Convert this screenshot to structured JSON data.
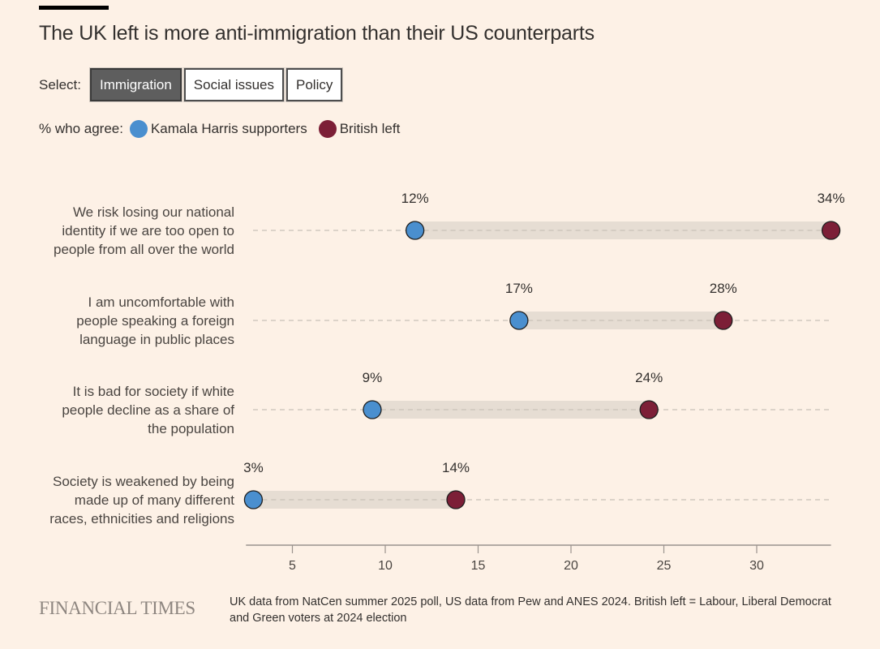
{
  "title": "The UK left is more anti-immigration than their US counterparts",
  "select": {
    "label": "Select:",
    "buttons": [
      {
        "label": "Immigration",
        "active": true
      },
      {
        "label": "Social issues",
        "active": false
      },
      {
        "label": "Policy",
        "active": false
      }
    ]
  },
  "legend": {
    "label": "% who agree:",
    "items": [
      {
        "label": "Kamala Harris supporters",
        "color": "#4a8fcf"
      },
      {
        "label": "British left",
        "color": "#7c1f37"
      }
    ]
  },
  "chart_data": {
    "type": "dot-range",
    "title": "The UK left is more anti-immigration than their US counterparts",
    "xlabel": "% who agree",
    "xlim": [
      2.5,
      34
    ],
    "xticks": [
      5,
      10,
      15,
      20,
      25,
      30
    ],
    "grid": false,
    "legend_position": "top-left",
    "series": [
      {
        "name": "Kamala Harris supporters",
        "color": "#4a8fcf"
      },
      {
        "name": "British left",
        "color": "#7c1f37"
      }
    ],
    "categories": [
      {
        "label_lines": [
          "We risk losing our national",
          "identity if we are too open to",
          "people from all over the world"
        ],
        "values": [
          11.6,
          34.0
        ],
        "labels": [
          "12%",
          "34%"
        ]
      },
      {
        "label_lines": [
          "I am uncomfortable with",
          "people speaking a foreign",
          "language in public places"
        ],
        "values": [
          17.2,
          28.2
        ],
        "labels": [
          "17%",
          "28%"
        ]
      },
      {
        "label_lines": [
          "It is bad for society if white",
          "people decline as a share of",
          "the population"
        ],
        "values": [
          9.3,
          24.2
        ],
        "labels": [
          "9%",
          "24%"
        ]
      },
      {
        "label_lines": [
          "Society is weakened by being",
          "made up of many different",
          "races, ethnicities and religions"
        ],
        "values": [
          2.9,
          13.8
        ],
        "labels": [
          "3%",
          "14%"
        ]
      }
    ]
  },
  "footer": {
    "brand": "FINANCIAL TIMES",
    "source": "UK data from NatCen summer 2025 poll, US data from Pew and ANES 2024. British left = Labour, Liberal Democrat and Green voters at 2024 election"
  }
}
